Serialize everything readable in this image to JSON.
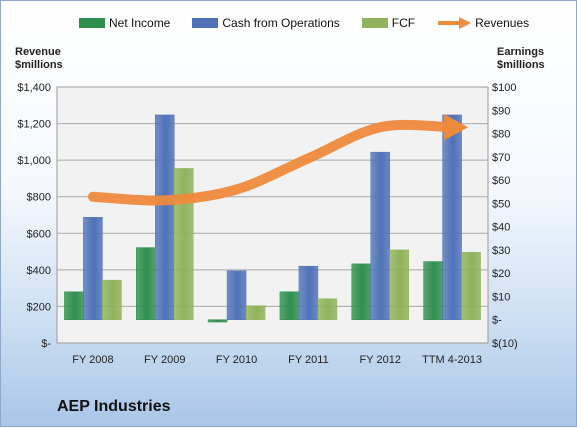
{
  "company": "AEP Industries",
  "left_axis_title": [
    "Revenue",
    "$millions"
  ],
  "right_axis_title": [
    "Earnings",
    "$millions"
  ],
  "colors": {
    "net_income": "#2f8f4e",
    "cash_from_operations": "#4f72b8",
    "fcf": "#8fb35a",
    "revenues": "#ee8a3c"
  },
  "chart_data": {
    "type": "bar",
    "categories": [
      "FY 2008",
      "FY 2009",
      "FY 2010",
      "FY 2011",
      "FY 2012",
      "TTM 4-2013"
    ],
    "left_axis": {
      "ticks": [
        "$-",
        "$200",
        "$400",
        "$600",
        "$800",
        "$1,000",
        "$1,200",
        "$1,400"
      ],
      "range": [
        0,
        1400
      ]
    },
    "right_axis": {
      "ticks": [
        "$(10)",
        "$-",
        "$10",
        "$20",
        "$30",
        "$40",
        "$50",
        "$60",
        "$70",
        "$80",
        "$90",
        "$100"
      ],
      "range": [
        -10,
        100
      ]
    },
    "series": [
      {
        "name": "Net Income",
        "axis": "right",
        "kind": "bar",
        "values": [
          12,
          31,
          -1,
          12,
          24,
          25
        ]
      },
      {
        "name": "Cash from Operations",
        "axis": "right",
        "kind": "bar",
        "values": [
          44,
          88,
          21,
          23,
          72,
          88
        ]
      },
      {
        "name": "FCF",
        "axis": "right",
        "kind": "bar",
        "values": [
          17,
          65,
          6,
          9,
          30,
          29
        ]
      },
      {
        "name": "Revenues",
        "axis": "left",
        "kind": "arrow-line",
        "values": [
          800,
          780,
          840,
          1010,
          1180,
          1180
        ]
      }
    ],
    "grid": true,
    "legend": "top"
  }
}
